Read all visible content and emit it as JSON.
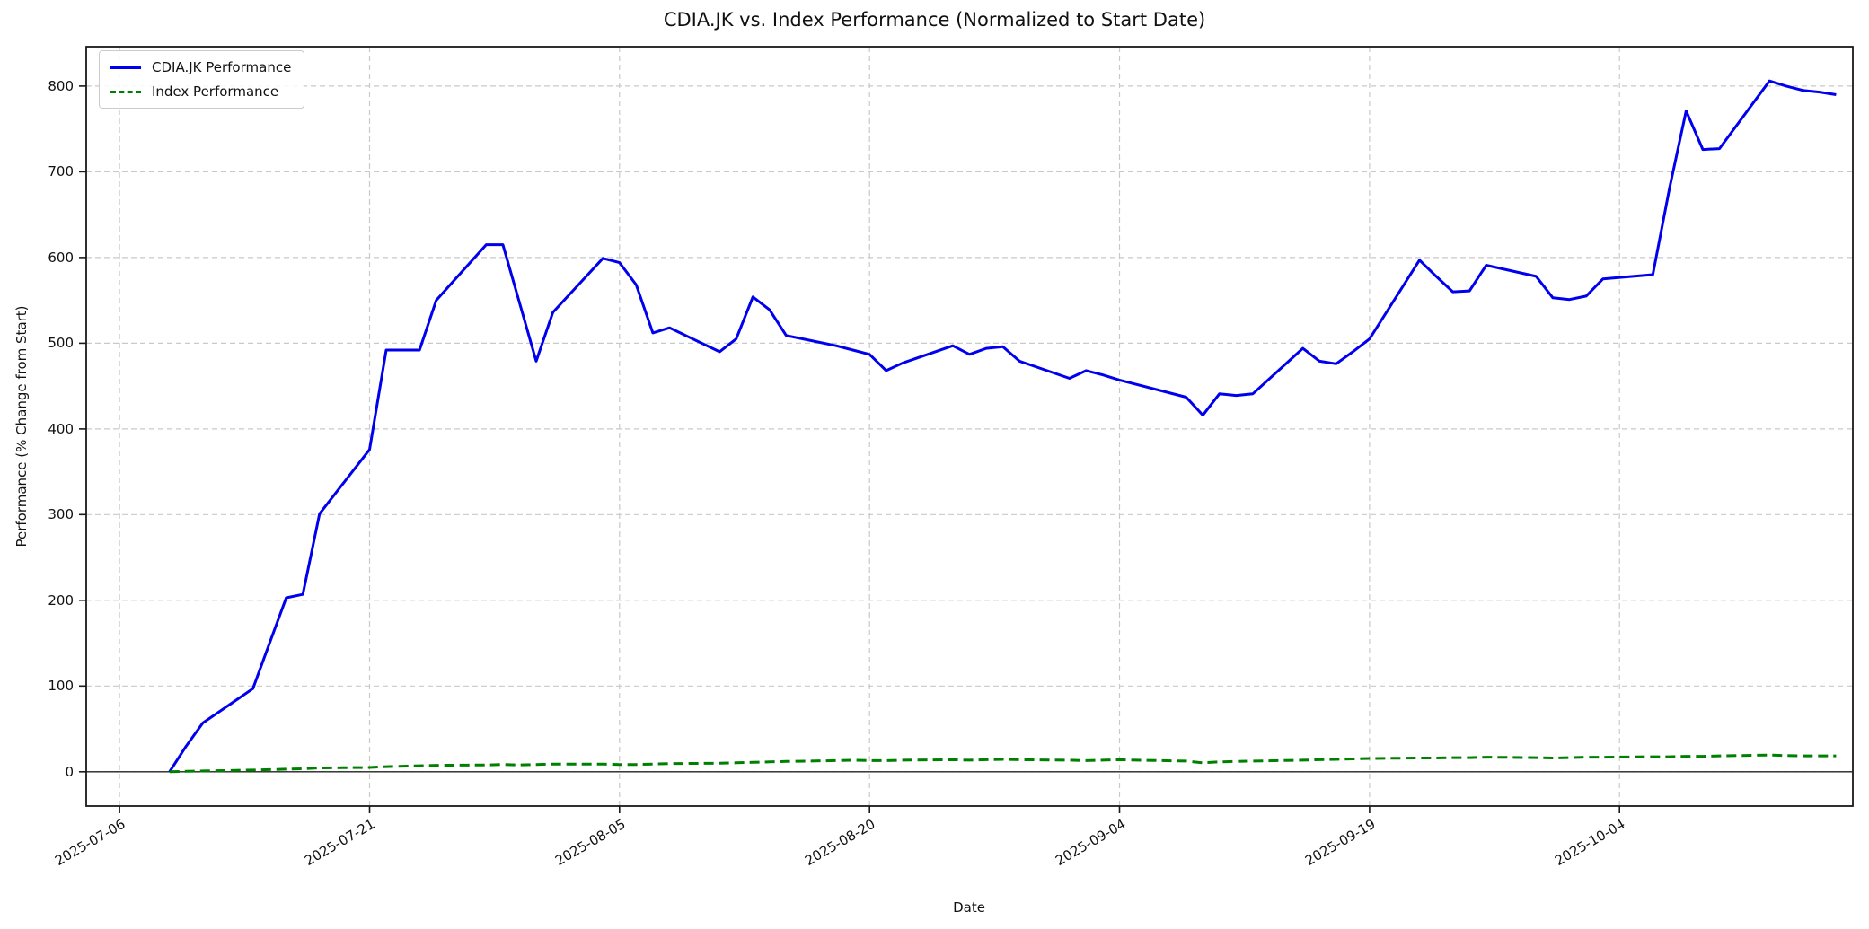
{
  "title": "CDIA.JK vs. Index Performance (Normalized to Start Date)",
  "chart_data": {
    "type": "line",
    "title": "CDIA.JK vs. Index Performance (Normalized to Start Date)",
    "xlabel": "Date",
    "ylabel": "Performance (% Change from Start)",
    "grid": true,
    "legend_position": "upper left",
    "xlim": [
      "2025-07-04",
      "2025-10-18"
    ],
    "ylim": [
      -40,
      846
    ],
    "x_ticks": [
      "2025-07-06",
      "2025-07-21",
      "2025-08-05",
      "2025-08-20",
      "2025-09-04",
      "2025-09-19",
      "2025-10-04"
    ],
    "y_ticks": [
      0,
      100,
      200,
      300,
      400,
      500,
      600,
      700,
      800
    ],
    "zero_line": true,
    "x": [
      "2025-07-09",
      "2025-07-10",
      "2025-07-11",
      "2025-07-14",
      "2025-07-15",
      "2025-07-16",
      "2025-07-17",
      "2025-07-18",
      "2025-07-21",
      "2025-07-22",
      "2025-07-23",
      "2025-07-24",
      "2025-07-25",
      "2025-07-28",
      "2025-07-29",
      "2025-07-30",
      "2025-07-31",
      "2025-08-01",
      "2025-08-04",
      "2025-08-05",
      "2025-08-06",
      "2025-08-07",
      "2025-08-08",
      "2025-08-11",
      "2025-08-12",
      "2025-08-13",
      "2025-08-14",
      "2025-08-15",
      "2025-08-18",
      "2025-08-19",
      "2025-08-20",
      "2025-08-21",
      "2025-08-22",
      "2025-08-25",
      "2025-08-26",
      "2025-08-27",
      "2025-08-28",
      "2025-08-29",
      "2025-09-01",
      "2025-09-02",
      "2025-09-03",
      "2025-09-04",
      "2025-09-05",
      "2025-09-08",
      "2025-09-09",
      "2025-09-10",
      "2025-09-11",
      "2025-09-12",
      "2025-09-15",
      "2025-09-16",
      "2025-09-17",
      "2025-09-18",
      "2025-09-19",
      "2025-09-22",
      "2025-09-23",
      "2025-09-24",
      "2025-09-25",
      "2025-09-26",
      "2025-09-29",
      "2025-09-30",
      "2025-10-01",
      "2025-10-02",
      "2025-10-03",
      "2025-10-06",
      "2025-10-07",
      "2025-10-08",
      "2025-10-09",
      "2025-10-10",
      "2025-10-13",
      "2025-10-14",
      "2025-10-15",
      "2025-10-16",
      "2025-10-17"
    ],
    "series": [
      {
        "name": "CDIA.JK Performance",
        "color": "#0000ee",
        "style": "solid",
        "line_width": 3,
        "values": [
          0,
          30,
          57,
          97,
          150,
          203,
          207,
          301,
          376,
          492,
          492,
          492,
          550,
          615,
          615,
          547,
          479,
          536,
          599,
          594,
          568,
          512,
          518,
          490,
          505,
          554,
          539,
          509,
          497,
          492,
          487,
          468,
          477,
          497,
          487,
          494,
          496,
          479,
          459,
          468,
          463,
          457,
          452,
          437,
          416,
          441,
          439,
          441,
          494,
          479,
          476,
          490,
          505,
          597,
          578,
          560,
          561,
          591,
          578,
          553,
          551,
          555,
          575,
          580,
          681,
          771,
          726,
          727,
          806,
          800,
          795,
          793,
          790
        ]
      },
      {
        "name": "Index Performance",
        "color": "#008000",
        "style": "dashed",
        "line_width": 3,
        "values": [
          0,
          0.5,
          1,
          2,
          2.5,
          3,
          3.5,
          4.5,
          5,
          6,
          6.5,
          7,
          7.5,
          8,
          8.5,
          8,
          8.5,
          9,
          9,
          8.5,
          8.5,
          9,
          9.5,
          10,
          10.5,
          11,
          11.5,
          12,
          13,
          13.5,
          13,
          13,
          13.5,
          14,
          13.5,
          14,
          14.5,
          14,
          13.5,
          13,
          13.5,
          14,
          13.5,
          12.5,
          10.5,
          11.5,
          12,
          12.5,
          13.5,
          14,
          14.5,
          15,
          15.5,
          16,
          16,
          16.5,
          16.5,
          17,
          16.5,
          16,
          16.5,
          17,
          17,
          17.5,
          17.5,
          18,
          18,
          18.5,
          19.5,
          19,
          18.5,
          18.5,
          18.5
        ]
      }
    ]
  },
  "legend": {
    "items": [
      {
        "label": "CDIA.JK Performance"
      },
      {
        "label": "Index Performance"
      }
    ]
  },
  "colors": {
    "cdia_line": "#0000ee",
    "index_line": "#008000",
    "grid": "#c9c9c9",
    "spine": "#1a1a1a",
    "zero_line": "#222222",
    "text": "#111111",
    "background": "#ffffff"
  }
}
